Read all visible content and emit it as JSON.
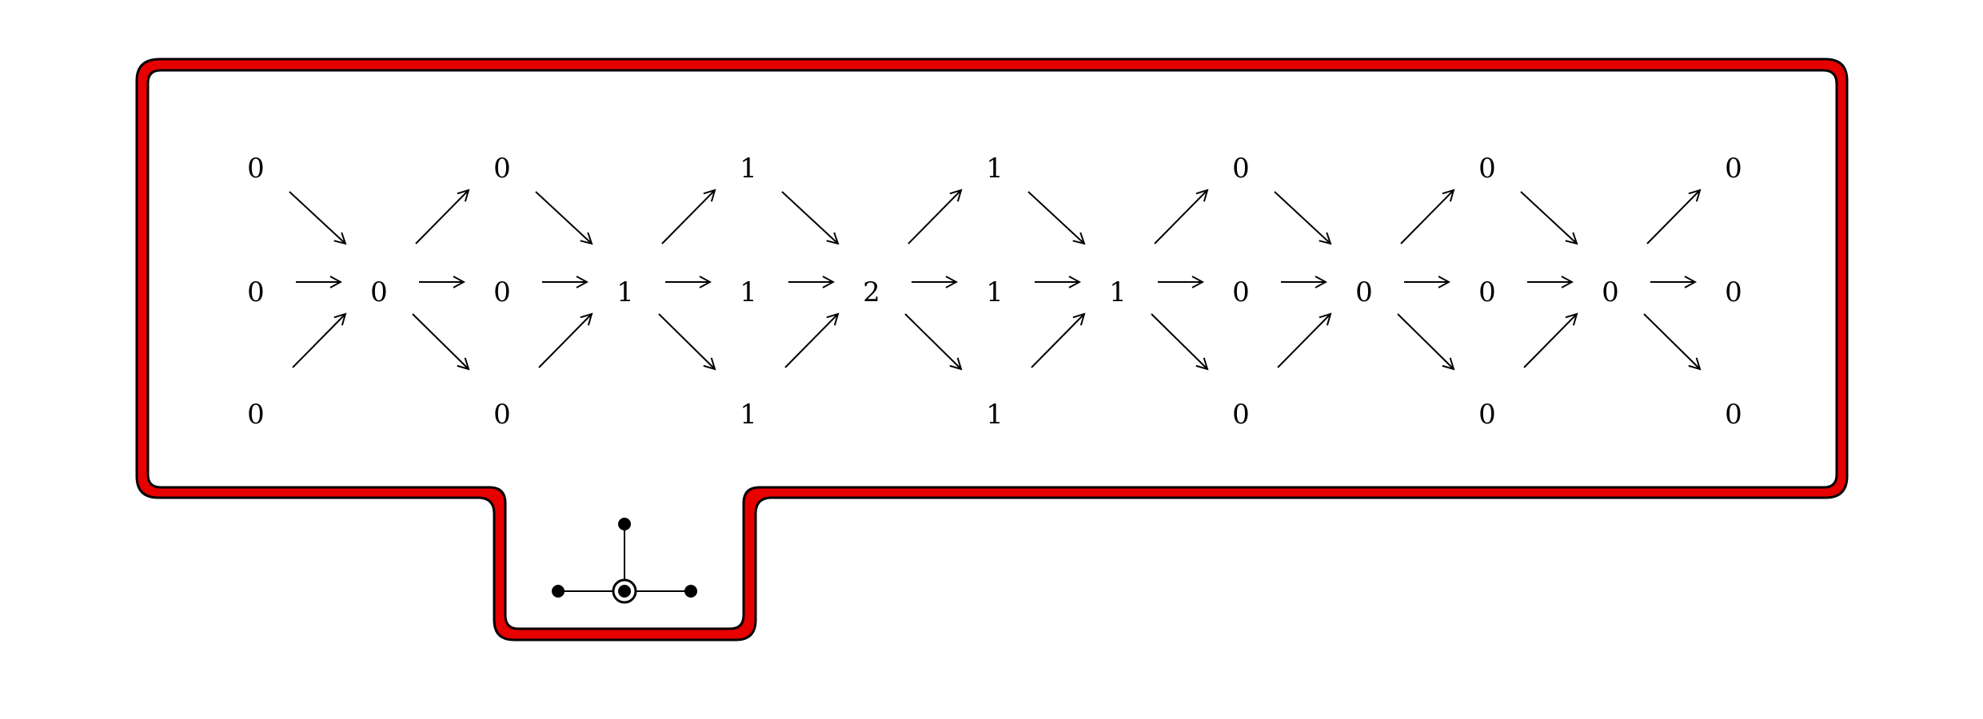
{
  "colors": {
    "frame_fill": "#e60000",
    "frame_outline": "#000000",
    "background": "#ffffff",
    "ink": "#000000"
  },
  "quiver": {
    "top_row": [
      "0",
      "0",
      "1",
      "1",
      "0",
      "0",
      "0"
    ],
    "middle_row": [
      "0",
      "0",
      "0",
      "1",
      "1",
      "2",
      "1",
      "1",
      "0",
      "0",
      "0",
      "0",
      "0"
    ],
    "bottom_row": [
      "0",
      "0",
      "1",
      "1",
      "0",
      "0",
      "0"
    ]
  },
  "inset_graph": {
    "nodes": [
      "center-node",
      "top-node",
      "left-node",
      "right-node"
    ],
    "edges": [
      [
        "center-node",
        "top-node"
      ],
      [
        "center-node",
        "left-node"
      ],
      [
        "center-node",
        "right-node"
      ]
    ],
    "highlighted_node": "center-node"
  }
}
